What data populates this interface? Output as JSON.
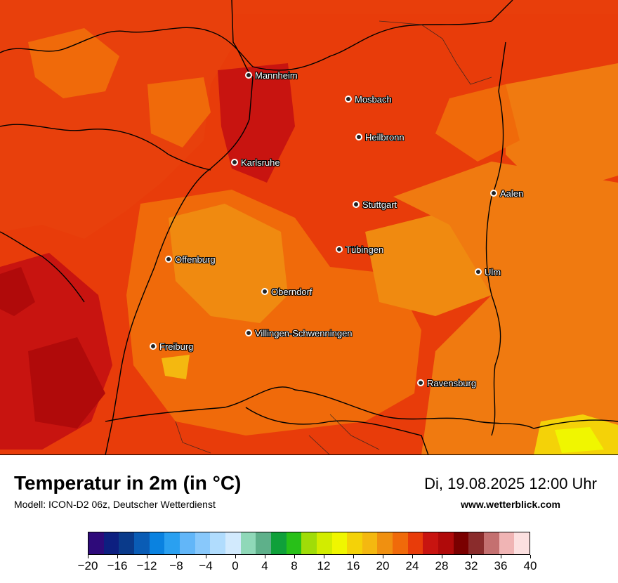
{
  "map": {
    "cities": [
      {
        "name": "Mannheim",
        "lon_px_ref": "mannheim"
      },
      {
        "name": "Mosbach",
        "lon_px_ref": "mosbach"
      },
      {
        "name": "Heilbronn",
        "lon_px_ref": "heilbronn"
      },
      {
        "name": "Karlsruhe",
        "lon_px_ref": "karlsruhe"
      },
      {
        "name": "Aalen",
        "lon_px_ref": "aalen"
      },
      {
        "name": "Stuttgart",
        "lon_px_ref": "stuttgart"
      },
      {
        "name": "Tübingen",
        "lon_px_ref": "tuebingen"
      },
      {
        "name": "Offenburg",
        "lon_px_ref": "offenburg"
      },
      {
        "name": "Ulm",
        "lon_px_ref": "ulm"
      },
      {
        "name": "Oberndorf",
        "lon_px_ref": "oberndorf"
      },
      {
        "name": "Villingen-Schwenningen",
        "lon_px_ref": "villingen"
      },
      {
        "name": "Freiburg",
        "lon_px_ref": "freiburg"
      },
      {
        "name": "Ravensburg",
        "lon_px_ref": "ravensburg"
      }
    ]
  },
  "header": {
    "title": "Temperatur in 2m (in °C)",
    "subtitle": "Modell: ICON-D2 06z, Deutscher Wetterdienst",
    "datetime": "Di, 19.08.2025 12:00 Uhr",
    "website": "www.wetterblick.com"
  },
  "legend": {
    "colors": [
      "#2e0a7a",
      "#0d1f80",
      "#0a3a8a",
      "#0a5cb5",
      "#0a82e0",
      "#2aa0f0",
      "#62b6f8",
      "#88c8fb",
      "#b0dcfd",
      "#d2eafd",
      "#8fd8b8",
      "#5eb08a",
      "#0fa03a",
      "#28c018",
      "#a0dc08",
      "#d2ec00",
      "#f0f600",
      "#f4d208",
      "#f4b810",
      "#f09010",
      "#f06a0a",
      "#e83c0a",
      "#c81410",
      "#b00a0a",
      "#7a0000",
      "#8a2c2c",
      "#c47070",
      "#f0b4b4",
      "#fce0e0"
    ],
    "tick_labels": [
      "−20",
      "−16",
      "−12",
      "−8",
      "−4",
      "0",
      "4",
      "8",
      "12",
      "16",
      "20",
      "24",
      "28",
      "32",
      "36",
      "40"
    ],
    "min": -20,
    "max": 40
  }
}
